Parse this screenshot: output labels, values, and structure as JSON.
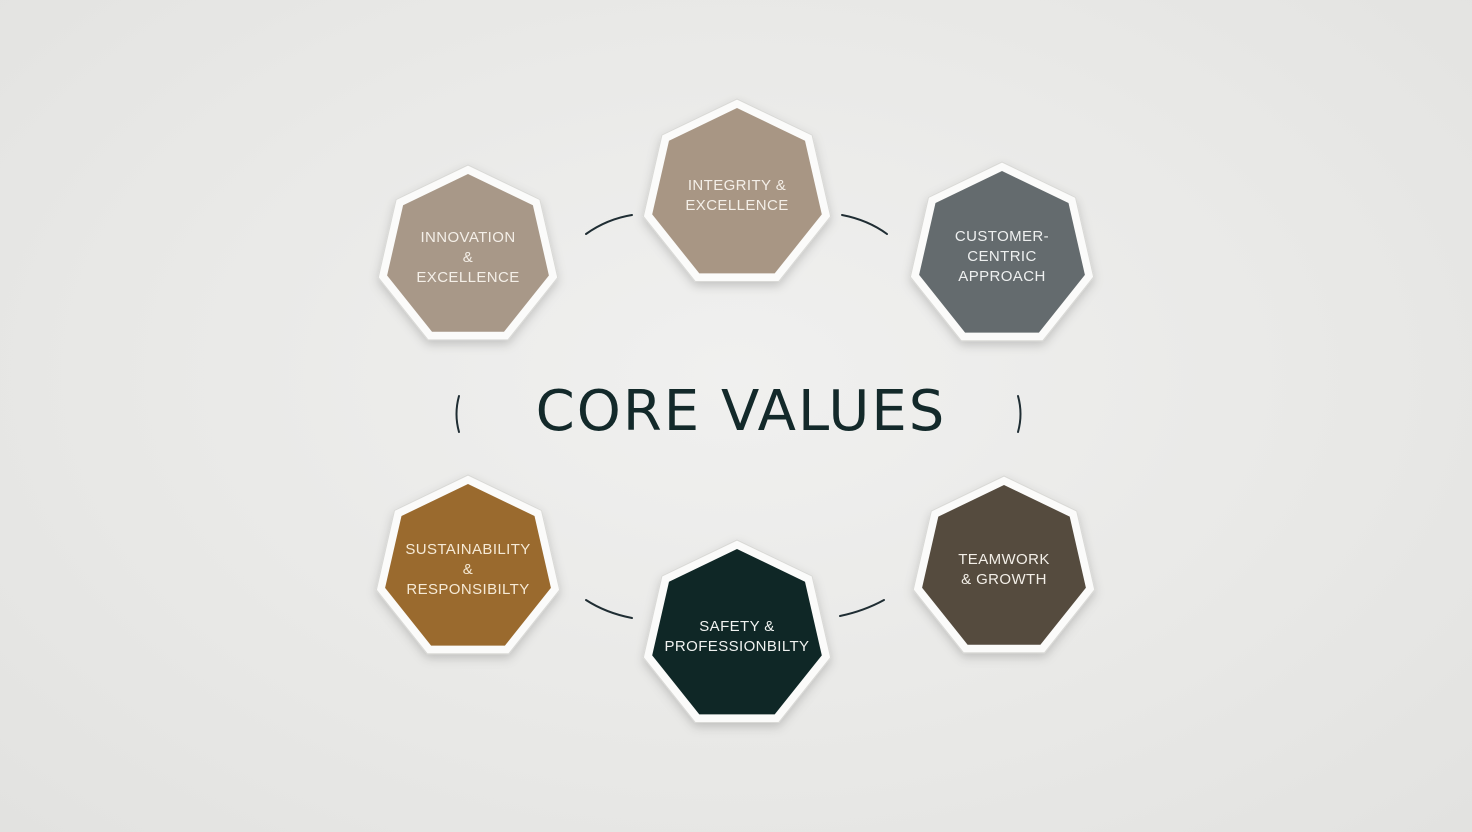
{
  "title": "CORE VALUES",
  "colors": {
    "background": "#ebebe9",
    "title": "#13292a",
    "connector": "#1f2d33",
    "badge_border": "#fbfbfa"
  },
  "values": [
    {
      "lines": [
        "INNOVATION",
        "&",
        "EXCELLENCE"
      ],
      "fill": "#a89888",
      "text_color": "#f4efe8"
    },
    {
      "lines": [
        "INTEGRITY &",
        "EXCELLENCE"
      ],
      "fill": "#a89684",
      "text_color": "#f4efe8"
    },
    {
      "lines": [
        "CUSTOMER-",
        "CENTRIC",
        "APPROACH"
      ],
      "fill": "#646b6e",
      "text_color": "#eef0f0"
    },
    {
      "lines": [
        "SUSTAINABILITY",
        "&",
        "RESPONSIBILTY"
      ],
      "fill": "#9a6a2e",
      "text_color": "#f6ead6"
    },
    {
      "lines": [
        "SAFETY &",
        "PROFESSIONBILTY"
      ],
      "fill": "#0f2726",
      "text_color": "#f0f2f0"
    },
    {
      "lines": [
        "TEAMWORK",
        "& GROWTH"
      ],
      "fill": "#554b3e",
      "text_color": "#f3efe8"
    }
  ]
}
